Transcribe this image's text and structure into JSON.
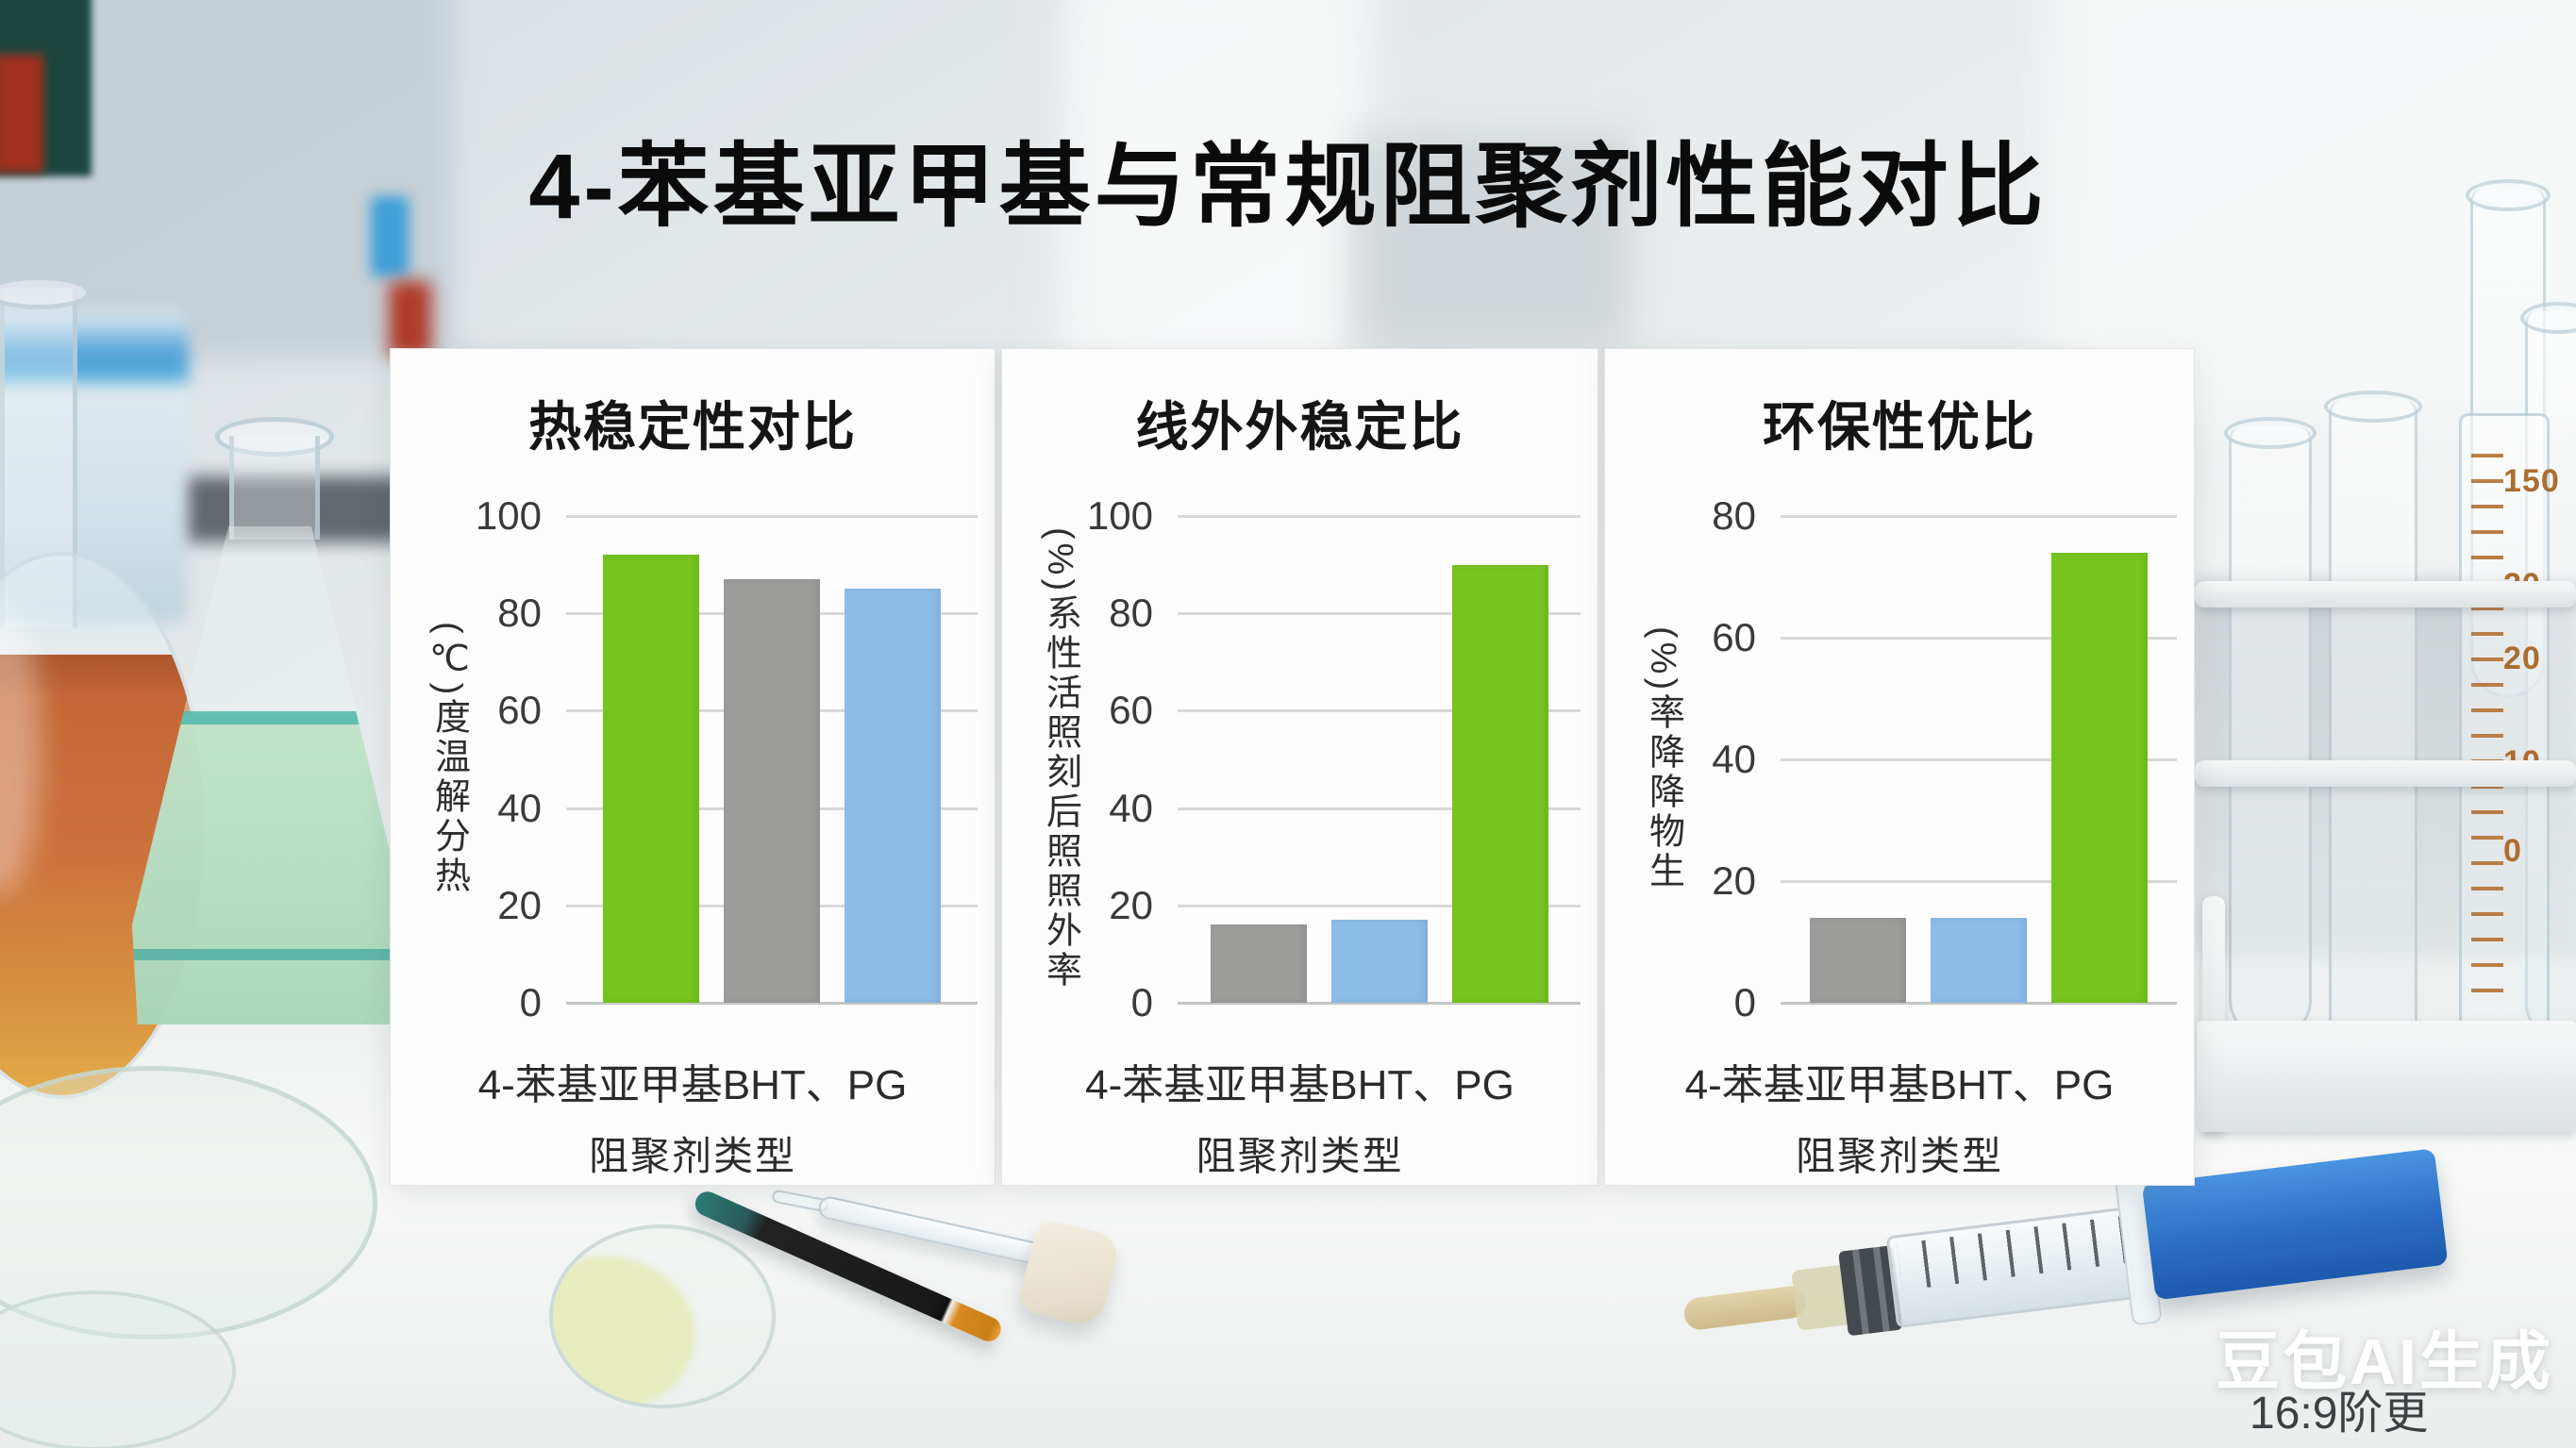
{
  "page_title": "4-苯基亚甲基与常规阻聚剂性能对比",
  "watermark": {
    "brand": "豆包AI生成",
    "caption": "16:9阶更"
  },
  "chart_data": [
    {
      "type": "bar",
      "title": "热稳定性对比",
      "ylabel": "(℃)度温解分热",
      "xtick_text": "4-苯基亚甲基BHT、PG",
      "xlabel": "阻聚剂类型",
      "categories": [
        "4-苯基亚甲基",
        "BHT",
        "PG"
      ],
      "values": [
        92,
        87,
        85
      ],
      "bar_colors": [
        "#77c41f",
        "#9c9c9a",
        "#8cbde9"
      ],
      "yticks": [
        100,
        80,
        60,
        40,
        20,
        0
      ],
      "ylim": [
        0,
        100
      ],
      "grid": true,
      "legend": "none"
    },
    {
      "type": "bar",
      "title": "线外外稳定比",
      "ylabel": "(%)系性活照刻后照照外率",
      "xtick_text": "4-苯基亚甲基BHT、PG",
      "xlabel": "阻聚剂类型",
      "categories": [
        "4-苯基亚甲基",
        "BHT",
        "PG"
      ],
      "values": [
        16,
        17,
        90
      ],
      "bar_colors": [
        "#9c9c9a",
        "#8cbde9",
        "#77c41f"
      ],
      "yticks": [
        100,
        80,
        60,
        40,
        20,
        0
      ],
      "ylim": [
        0,
        100
      ],
      "grid": true,
      "legend": "none"
    },
    {
      "type": "bar",
      "title": "环保性优比",
      "ylabel": "(%)率降降物生",
      "xtick_text": "4-苯基亚甲基BHT、PG",
      "xlabel": "阻聚剂类型",
      "categories": [
        "4-苯基亚甲基",
        "BHT",
        "PG"
      ],
      "values": [
        14,
        14,
        74
      ],
      "bar_colors": [
        "#9c9c9a",
        "#8cbde9",
        "#77c41f"
      ],
      "yticks": [
        80,
        60,
        40,
        20,
        0
      ],
      "ylim": [
        0,
        80
      ],
      "grid": true,
      "legend": "none"
    }
  ],
  "scene": {
    "cylinder_scale_labels": [
      "150",
      "20",
      "20",
      "10",
      "0"
    ]
  }
}
